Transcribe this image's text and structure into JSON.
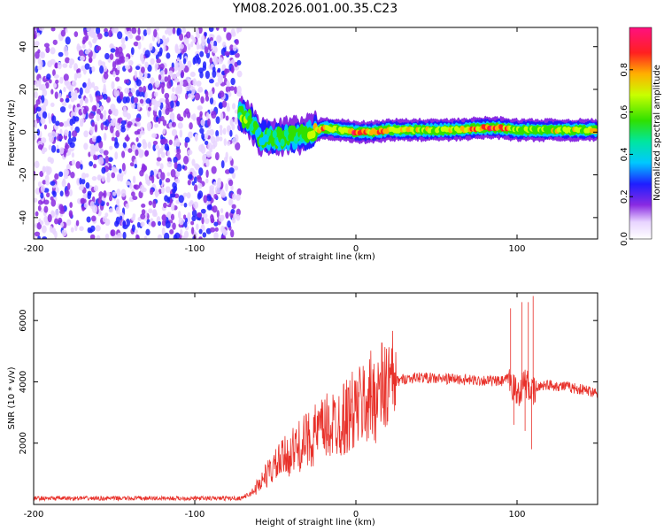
{
  "title": "YM08.2026.001.00.35.C23",
  "chart_data": [
    {
      "type": "heatmap",
      "name": "spectrogram",
      "xlabel": "Height of straight line (km)",
      "ylabel": "Frequency (Hz)",
      "xlim": [
        -200,
        150
      ],
      "ylim": [
        -50,
        49
      ],
      "xticks": [
        "-200",
        "-100",
        "0",
        "100"
      ],
      "xtick_values": [
        -200,
        -100,
        0,
        100
      ],
      "yticks": [
        "-40",
        "-20",
        "0",
        "20",
        "40"
      ],
      "ytick_values": [
        -40,
        -20,
        0,
        20,
        40
      ],
      "noise_region": {
        "x_from": -200,
        "x_to": -72
      },
      "signal_band": [
        {
          "x": -72,
          "y": 8,
          "amp": 0.55
        },
        {
          "x": -66,
          "y": 6,
          "amp": 0.55
        },
        {
          "x": -60,
          "y": -2,
          "amp": 0.4
        },
        {
          "x": -50,
          "y": -3,
          "amp": 0.45
        },
        {
          "x": -40,
          "y": -2,
          "amp": 0.55
        },
        {
          "x": -30,
          "y": -1,
          "amp": 0.55
        },
        {
          "x": -20,
          "y": 2,
          "amp": 0.85
        },
        {
          "x": -10,
          "y": 1,
          "amp": 0.6
        },
        {
          "x": 0,
          "y": 0,
          "amp": 0.9
        },
        {
          "x": 10,
          "y": 0,
          "amp": 0.85
        },
        {
          "x": 20,
          "y": 1,
          "amp": 0.7
        },
        {
          "x": 40,
          "y": 1,
          "amp": 0.65
        },
        {
          "x": 60,
          "y": 1,
          "amp": 0.7
        },
        {
          "x": 80,
          "y": 2,
          "amp": 0.85
        },
        {
          "x": 90,
          "y": 2,
          "amp": 0.8
        },
        {
          "x": 100,
          "y": 1,
          "amp": 0.6
        },
        {
          "x": 120,
          "y": 1,
          "amp": 0.65
        },
        {
          "x": 150,
          "y": 1,
          "amp": 0.65
        }
      ],
      "colorbar": {
        "label": "Normalized spectral amplitude",
        "ticks": [
          "0.0",
          "0.2",
          "0.4",
          "0.6",
          "0.8"
        ],
        "tick_values": [
          0.0,
          0.2,
          0.4,
          0.6,
          0.8
        ],
        "range": [
          0,
          1
        ]
      }
    },
    {
      "type": "line",
      "name": "snr",
      "xlabel": "Height of straight line (km)",
      "ylabel": "SNR (10 * v/v)",
      "xlim": [
        -200,
        150
      ],
      "ylim": [
        0,
        6900
      ],
      "xticks": [
        "-200",
        "-100",
        "0",
        "100"
      ],
      "xtick_values": [
        -200,
        -100,
        0,
        100
      ],
      "yticks": [
        "2000",
        "4000",
        "6000"
      ],
      "ytick_values": [
        2000,
        4000,
        6000
      ],
      "color": "#e8312a",
      "series": [
        {
          "name": "SNR",
          "x": [
            -200,
            -150,
            -100,
            -72,
            -65,
            -55,
            -45,
            -35,
            -25,
            -15,
            -5,
            0,
            10,
            20,
            30,
            40,
            50,
            60,
            70,
            80,
            90,
            95,
            100,
            105,
            110,
            115,
            120,
            130,
            140,
            150
          ],
          "y": [
            200,
            200,
            200,
            200,
            350,
            1000,
            1500,
            1900,
            2300,
            2600,
            2900,
            3100,
            3500,
            3900,
            4100,
            4150,
            4100,
            4100,
            4050,
            4050,
            4000,
            4100,
            3600,
            4000,
            3600,
            3900,
            3900,
            3850,
            3750,
            3650
          ]
        }
      ],
      "spikes": [
        {
          "x": 96,
          "y": 6400
        },
        {
          "x": 98,
          "y": 2600
        },
        {
          "x": 103,
          "y": 6600
        },
        {
          "x": 105,
          "y": 2400
        },
        {
          "x": 107,
          "y": 6600
        },
        {
          "x": 109,
          "y": 1800
        },
        {
          "x": 110,
          "y": 6800
        }
      ]
    }
  ]
}
